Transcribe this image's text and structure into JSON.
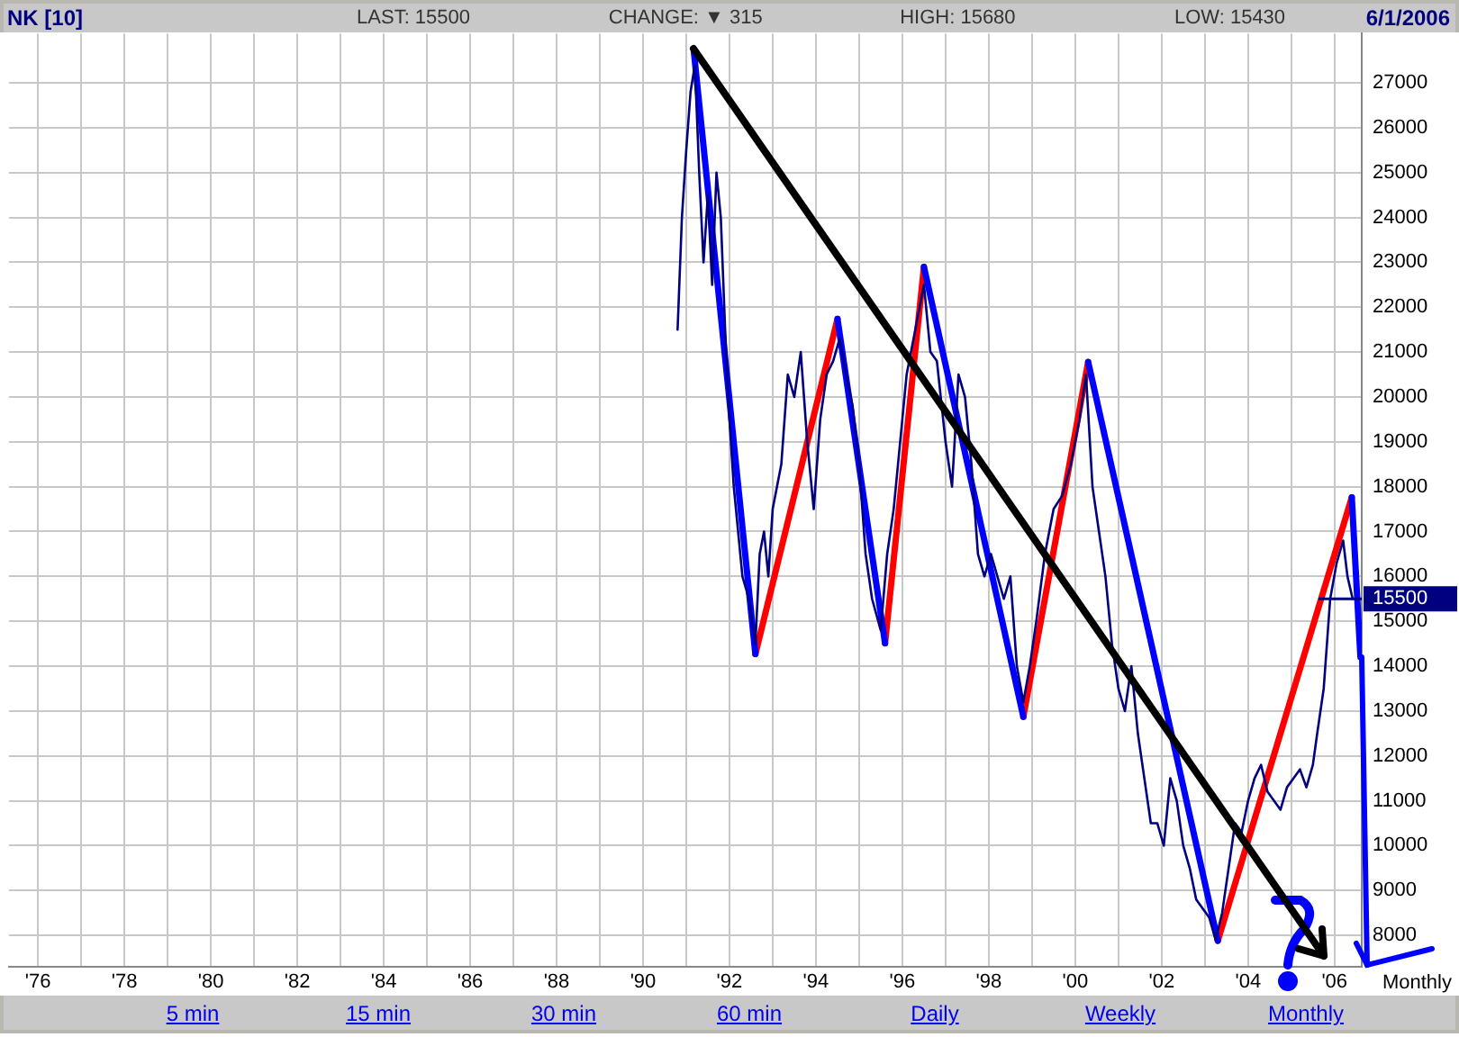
{
  "chart_data": {
    "type": "line",
    "title": "NK [10]",
    "subtitle": "6/1/2006",
    "xlabel": "Monthly",
    "annotations": [
      "LAST: 15500",
      "CHANGE: ▼ 315",
      "HIGH: 15680",
      "LOW: 15430",
      "5 min",
      "15 min",
      "30 min",
      "60 min",
      "Daily",
      "Weekly",
      "Monthly"
    ],
    "ref_lines": [
      {
        "axis": "y",
        "value": 15500,
        "label": "15500",
        "color": "#000080"
      }
    ],
    "xlim": [
      1975.33,
      2006.63
    ],
    "xticks": [
      {
        "value": 1976,
        "label": "'76"
      },
      {
        "value": 1977,
        "label": null
      },
      {
        "value": 1978,
        "label": "'78"
      },
      {
        "value": 1979,
        "label": null
      },
      {
        "value": 1980,
        "label": "'80"
      },
      {
        "value": 1981,
        "label": null
      },
      {
        "value": 1982,
        "label": "'82"
      },
      {
        "value": 1983,
        "label": null
      },
      {
        "value": 1984,
        "label": "'84"
      },
      {
        "value": 1985,
        "label": null
      },
      {
        "value": 1986,
        "label": "'86"
      },
      {
        "value": 1987,
        "label": null
      },
      {
        "value": 1988,
        "label": "'88"
      },
      {
        "value": 1989,
        "label": null
      },
      {
        "value": 1990,
        "label": "'90"
      },
      {
        "value": 1991,
        "label": null
      },
      {
        "value": 1992,
        "label": "'92"
      },
      {
        "value": 1993,
        "label": null
      },
      {
        "value": 1994,
        "label": "'94"
      },
      {
        "value": 1995,
        "label": null
      },
      {
        "value": 1996,
        "label": "'96"
      },
      {
        "value": 1997,
        "label": null
      },
      {
        "value": 1998,
        "label": "'98"
      },
      {
        "value": 1999,
        "label": null
      },
      {
        "value": 2000,
        "label": "'00"
      },
      {
        "value": 2001,
        "label": null
      },
      {
        "value": 2002,
        "label": "'02"
      },
      {
        "value": 2003,
        "label": null
      },
      {
        "value": 2004,
        "label": "'04"
      },
      {
        "value": 2005,
        "label": null
      },
      {
        "value": 2006,
        "label": "'06"
      }
    ],
    "ylim": [
      7300,
      28100
    ],
    "yticks": [
      8000,
      9000,
      10000,
      11000,
      12000,
      13000,
      14000,
      15000,
      16000,
      17000,
      18000,
      19000,
      20000,
      21000,
      22000,
      23000,
      24000,
      25000,
      26000,
      27000
    ],
    "grid": true,
    "legend": false,
    "marker": "none",
    "line_style": "solid",
    "series": [
      {
        "color": "#000080",
        "x": [
          1990.8,
          1990.9,
          1991.0,
          1991.1,
          1991.2,
          1991.3,
          1991.4,
          1991.5,
          1991.6,
          1991.7,
          1991.8,
          1991.9,
          1992.0,
          1992.1,
          1992.2,
          1992.3,
          1992.45,
          1992.6,
          1992.7,
          1992.8,
          1992.9,
          1993.0,
          1993.2,
          1993.35,
          1993.5,
          1993.65,
          1993.8,
          1993.95,
          1994.1,
          1994.25,
          1994.4,
          1994.55,
          1994.7,
          1994.85,
          1995.0,
          1995.15,
          1995.3,
          1995.5,
          1995.65,
          1995.8,
          1995.95,
          1996.1,
          1996.3,
          1996.5,
          1996.65,
          1996.8,
          1997.0,
          1997.15,
          1997.3,
          1997.45,
          1997.6,
          1997.75,
          1997.9,
          1998.05,
          1998.2,
          1998.35,
          1998.5,
          1998.65,
          1998.8,
          1998.95,
          1999.1,
          1999.3,
          1999.5,
          1999.7,
          1999.9,
          2000.1,
          2000.25,
          2000.4,
          2000.55,
          2000.7,
          2000.85,
          2001.0,
          2001.15,
          2001.3,
          2001.45,
          2001.6,
          2001.75,
          2001.9,
          2002.05,
          2002.2,
          2002.35,
          2002.5,
          2002.65,
          2002.8,
          2002.95,
          2003.1,
          2003.25,
          2003.4,
          2003.55,
          2003.7,
          2003.85,
          2004.0,
          2004.15,
          2004.3,
          2004.45,
          2004.6,
          2004.75,
          2004.9,
          2005.05,
          2005.2,
          2005.35,
          2005.5,
          2005.6,
          2005.75,
          2005.9,
          2006.05,
          2006.2,
          2006.3,
          2006.42
        ],
        "values": [
          21500,
          24000,
          25500,
          26800,
          27400,
          25000,
          23000,
          24500,
          22500,
          25000,
          24000,
          21500,
          19500,
          18000,
          17000,
          16000,
          15500,
          14500,
          16500,
          17000,
          16000,
          17500,
          18500,
          20500,
          20000,
          21000,
          19000,
          17500,
          19500,
          20500,
          20800,
          21300,
          20500,
          19800,
          18500,
          16500,
          15500,
          14800,
          16500,
          17500,
          19000,
          20500,
          21500,
          22500,
          21000,
          20800,
          19000,
          18000,
          20500,
          20000,
          18500,
          16500,
          16000,
          16500,
          16000,
          15500,
          16000,
          14000,
          13200,
          14000,
          15000,
          16500,
          17500,
          17800,
          18500,
          19500,
          20500,
          18000,
          17000,
          16000,
          14500,
          13500,
          13000,
          14000,
          12500,
          11500,
          10500,
          10500,
          10000,
          11500,
          11000,
          10000,
          9500,
          8800,
          8600,
          8400,
          7900,
          8500,
          9500,
          10500,
          10300,
          11000,
          11500,
          11800,
          11200,
          11000,
          10800,
          11300,
          11500,
          11700,
          11300,
          11800,
          12500,
          13500,
          15500,
          16300,
          16800,
          16000,
          15500
        ]
      },
      {
        "color": "#0000ff",
        "x": [
          1991.17,
          1992.6,
          1993.5,
          1994.5,
          1995.6,
          1996.0,
          1996.5,
          1998.8,
          1999.5,
          2000.3,
          2003.3,
          2005.0,
          2006.4,
          2006.6
        ],
        "values": [
          27760,
          14270,
          null,
          21740,
          14510,
          null,
          22900,
          12870,
          null,
          20780,
          7880,
          null,
          17760,
          14200
        ]
      },
      {
        "color": "#ff0000",
        "x": [
          1992.6,
          1994.5,
          1995.0,
          1995.6,
          1996.5,
          1997.5,
          1998.8,
          2000.3,
          2001.5,
          2003.3,
          2006.4
        ],
        "values": [
          14270,
          21740,
          null,
          14510,
          22900,
          null,
          12870,
          20780,
          null,
          7880,
          17760
        ]
      }
    ]
  }
}
